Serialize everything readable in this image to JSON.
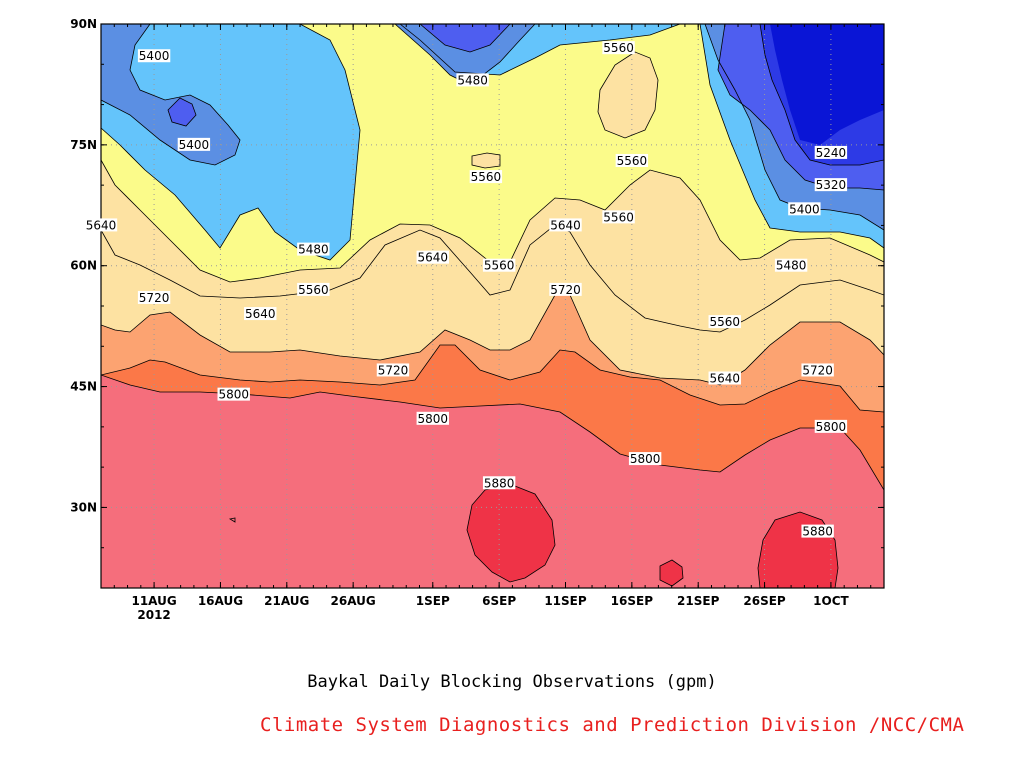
{
  "chart_data": {
    "type": "heatmap",
    "title": "Baykal Daily Blocking Observations (gpm)",
    "source": "Climate System Diagnostics and Prediction Division /NCC/CMA",
    "x_axis": {
      "ticks": [
        "11AUG",
        "16AUG",
        "21AUG",
        "26AUG",
        "1SEP",
        "6SEP",
        "11SEP",
        "16SEP",
        "21SEP",
        "26SEP",
        "1OCT"
      ],
      "year_label": "2012",
      "range": [
        "2012-08-07",
        "2012-10-05"
      ]
    },
    "y_axis": {
      "ticks": [
        "30N",
        "45N",
        "60N",
        "75N",
        "90N"
      ],
      "range": [
        20,
        90
      ]
    },
    "grid": "dotted",
    "levels": [
      5240,
      5320,
      5400,
      5480,
      5560,
      5640,
      5720,
      5800,
      5880
    ],
    "fill_colors": {
      "below_5240": "#0a15d6",
      "5240_5320": "#2d3ae6",
      "5320_5400": "#4e5ef0",
      "5400_5480": "#5b8fe3",
      "5480_5560": "#64c4fb",
      "5560_5640": "#fbfb8a",
      "5640_5720": "#fde2a2",
      "5720_5800": "#fca371",
      "5800_5880": "#fb7848",
      "5880_plus": "#f56e7c",
      "max_core": "#ef3347"
    },
    "contour_labels": [
      {
        "value": "5400",
        "date": "2012-08-11",
        "lat": 86
      },
      {
        "value": "5400",
        "date": "2012-08-14",
        "lat": 75
      },
      {
        "value": "5480",
        "date": "2012-09-04",
        "lat": 83
      },
      {
        "value": "5560",
        "date": "2012-09-15",
        "lat": 87
      },
      {
        "value": "5560",
        "date": "2012-09-16",
        "lat": 73
      },
      {
        "value": "5560",
        "date": "2012-09-05",
        "lat": 71
      },
      {
        "value": "5240",
        "date": "2012-10-01",
        "lat": 74
      },
      {
        "value": "5320",
        "date": "2012-10-01",
        "lat": 70
      },
      {
        "value": "5400",
        "date": "2012-09-29",
        "lat": 67
      },
      {
        "value": "5640",
        "date": "2012-08-07",
        "lat": 65
      },
      {
        "value": "5480",
        "date": "2012-08-23",
        "lat": 62
      },
      {
        "value": "5560",
        "date": "2012-09-15",
        "lat": 66
      },
      {
        "value": "5640",
        "date": "2012-09-01",
        "lat": 61
      },
      {
        "value": "5560",
        "date": "2012-09-06",
        "lat": 60
      },
      {
        "value": "5640",
        "date": "2012-09-11",
        "lat": 65
      },
      {
        "value": "5480",
        "date": "2012-09-28",
        "lat": 60
      },
      {
        "value": "5720",
        "date": "2012-08-11",
        "lat": 56
      },
      {
        "value": "5560",
        "date": "2012-08-23",
        "lat": 57
      },
      {
        "value": "5640",
        "date": "2012-08-19",
        "lat": 54
      },
      {
        "value": "5720",
        "date": "2012-09-11",
        "lat": 57
      },
      {
        "value": "5560",
        "date": "2012-09-23",
        "lat": 53
      },
      {
        "value": "5720",
        "date": "2012-08-29",
        "lat": 47
      },
      {
        "value": "5640",
        "date": "2012-09-23",
        "lat": 46
      },
      {
        "value": "5720",
        "date": "2012-09-30",
        "lat": 47
      },
      {
        "value": "5800",
        "date": "2012-08-17",
        "lat": 44
      },
      {
        "value": "5800",
        "date": "2012-09-01",
        "lat": 41
      },
      {
        "value": "5800",
        "date": "2012-10-01",
        "lat": 40
      },
      {
        "value": "5800",
        "date": "2012-09-17",
        "lat": 36
      },
      {
        "value": "5880",
        "date": "2012-09-06",
        "lat": 33
      },
      {
        "value": "5880",
        "date": "2012-09-30",
        "lat": 27
      }
    ]
  }
}
